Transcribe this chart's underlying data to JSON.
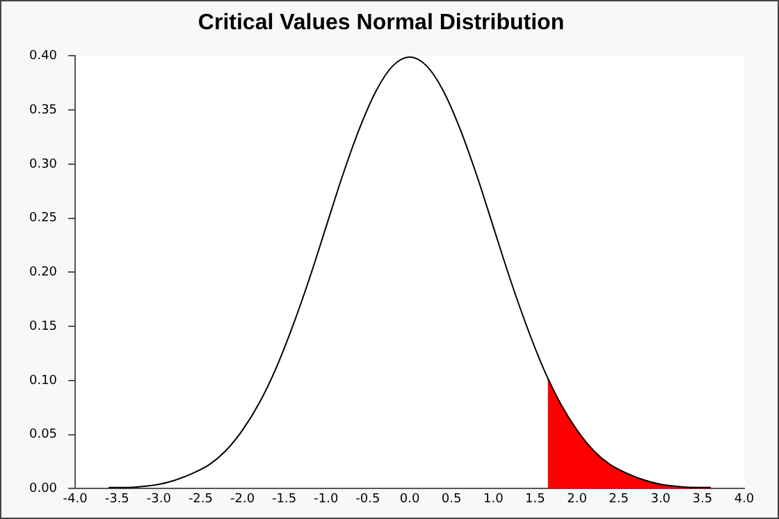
{
  "chart_data": {
    "type": "line",
    "title": "Critical Values Normal Distribution",
    "series": [
      {
        "type": "line",
        "color": "#000000",
        "x": [
          -3.6,
          -3.4,
          -3.2,
          -3.0,
          -2.8,
          -2.6,
          -2.4,
          -2.2,
          -2.0,
          -1.8,
          -1.6,
          -1.4,
          -1.2,
          -1.0,
          -0.8,
          -0.6,
          -0.4,
          -0.2,
          0,
          0.2,
          0.4,
          0.6,
          0.8,
          1.0,
          1.2,
          1.4,
          1.6,
          1.8,
          2.0,
          2.2,
          2.4,
          2.6,
          2.8,
          3.0,
          3.2,
          3.4,
          3.6
        ],
        "values": [
          0.001,
          0.001,
          0.002,
          0.004,
          0.008,
          0.014,
          0.022,
          0.035,
          0.054,
          0.079,
          0.111,
          0.15,
          0.194,
          0.242,
          0.29,
          0.333,
          0.368,
          0.391,
          0.399,
          0.391,
          0.368,
          0.333,
          0.29,
          0.242,
          0.194,
          0.15,
          0.111,
          0.079,
          0.054,
          0.035,
          0.022,
          0.014,
          0.008,
          0.004,
          0.002,
          0.001,
          0.001
        ]
      },
      {
        "type": "area",
        "color": "#ff0000",
        "x": [
          1.65,
          1.8,
          2.0,
          2.2,
          2.4,
          2.6,
          2.8,
          3.0,
          3.2,
          3.4,
          3.6
        ],
        "values": [
          0.102,
          0.079,
          0.054,
          0.035,
          0.022,
          0.014,
          0.008,
          0.004,
          0.002,
          0.001,
          0.001
        ]
      }
    ],
    "xlim": [
      -4,
      4
    ],
    "xticks": [
      {
        "value": -4,
        "label": "-4.0"
      },
      {
        "value": -3.5,
        "label": "-3.5"
      },
      {
        "value": -3,
        "label": "-3.0"
      },
      {
        "value": -2.5,
        "label": "-2.5"
      },
      {
        "value": -2,
        "label": "-2.0"
      },
      {
        "value": -1.5,
        "label": "-1.5"
      },
      {
        "value": -1,
        "label": "-1.0"
      },
      {
        "value": -0.5,
        "label": "-0.5"
      },
      {
        "value": 0,
        "label": "0.0"
      },
      {
        "value": 0.5,
        "label": "0.5"
      },
      {
        "value": 1,
        "label": "1.0"
      },
      {
        "value": 1.5,
        "label": "1.5"
      },
      {
        "value": 2,
        "label": "2.0"
      },
      {
        "value": 2.5,
        "label": "2.5"
      },
      {
        "value": 3,
        "label": "3.0"
      },
      {
        "value": 3.5,
        "label": "3.5"
      },
      {
        "value": 4,
        "label": "4.0"
      }
    ],
    "ylim": [
      0,
      0.4
    ],
    "yticks": [
      {
        "value": 0,
        "label": "0.00"
      },
      {
        "value": 0.05,
        "label": "0.05"
      },
      {
        "value": 0.1,
        "label": "0.10"
      },
      {
        "value": 0.15,
        "label": "0.15"
      },
      {
        "value": 0.2,
        "label": "0.20"
      },
      {
        "value": 0.25,
        "label": "0.25"
      },
      {
        "value": 0.3,
        "label": "0.30"
      },
      {
        "value": 0.35,
        "label": "0.35"
      },
      {
        "value": 0.4,
        "label": "0.40"
      }
    ],
    "grid": false,
    "legend": false,
    "marker": "none",
    "line_style": "solid"
  }
}
